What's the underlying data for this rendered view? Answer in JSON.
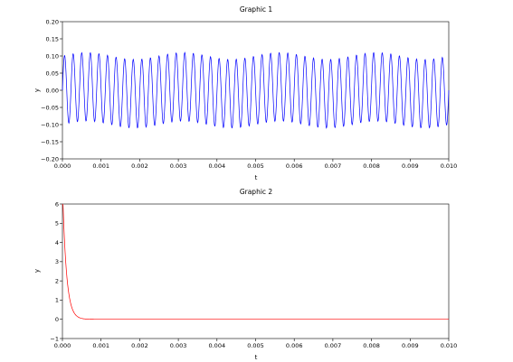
{
  "chart_data": [
    {
      "type": "line",
      "title": "Graphic 1",
      "xlabel": "t",
      "ylabel": "y",
      "xlim": [
        0,
        0.01
      ],
      "ylim": [
        -0.2,
        0.2
      ],
      "grid": false,
      "series": [
        {
          "color": "#0000ff",
          "function": "0.1*sin(2*pi*4500*t) + 0.01*sin(2*pi*400*t)",
          "samples": 1200
        }
      ],
      "x_ticks": [
        "0.000",
        "0.001",
        "0.002",
        "0.003",
        "0.004",
        "0.005",
        "0.006",
        "0.007",
        "0.008",
        "0.009",
        "0.010"
      ],
      "x_tick_values": [
        0,
        0.001,
        0.002,
        0.003,
        0.004,
        0.005,
        0.006,
        0.007,
        0.008,
        0.009,
        0.01
      ],
      "y_ticks": [
        "0.20",
        "0.15",
        "0.10",
        "0.05",
        "0.00",
        "−0.05",
        "−0.10",
        "−0.15",
        "−0.20"
      ],
      "y_tick_values": [
        0.2,
        0.15,
        0.1,
        0.05,
        0,
        -0.05,
        -0.1,
        -0.15,
        -0.2
      ]
    },
    {
      "type": "line",
      "title": "Graphic 2",
      "xlabel": "t",
      "ylabel": "y",
      "xlim": [
        0,
        0.01
      ],
      "ylim": [
        -1,
        6
      ],
      "grid": false,
      "series": [
        {
          "color": "#ff0000",
          "function": "7*exp(-t/0.0001)",
          "samples": 600
        }
      ],
      "x_ticks": [
        "0.000",
        "0.001",
        "0.002",
        "0.003",
        "0.004",
        "0.005",
        "0.006",
        "0.007",
        "0.008",
        "0.009",
        "0.010"
      ],
      "x_tick_values": [
        0,
        0.001,
        0.002,
        0.003,
        0.004,
        0.005,
        0.006,
        0.007,
        0.008,
        0.009,
        0.01
      ],
      "y_ticks": [
        "6",
        "5",
        "4",
        "3",
        "2",
        "1",
        "0",
        "−1"
      ],
      "y_tick_values": [
        6,
        5,
        4,
        3,
        2,
        1,
        0,
        -1
      ]
    }
  ]
}
